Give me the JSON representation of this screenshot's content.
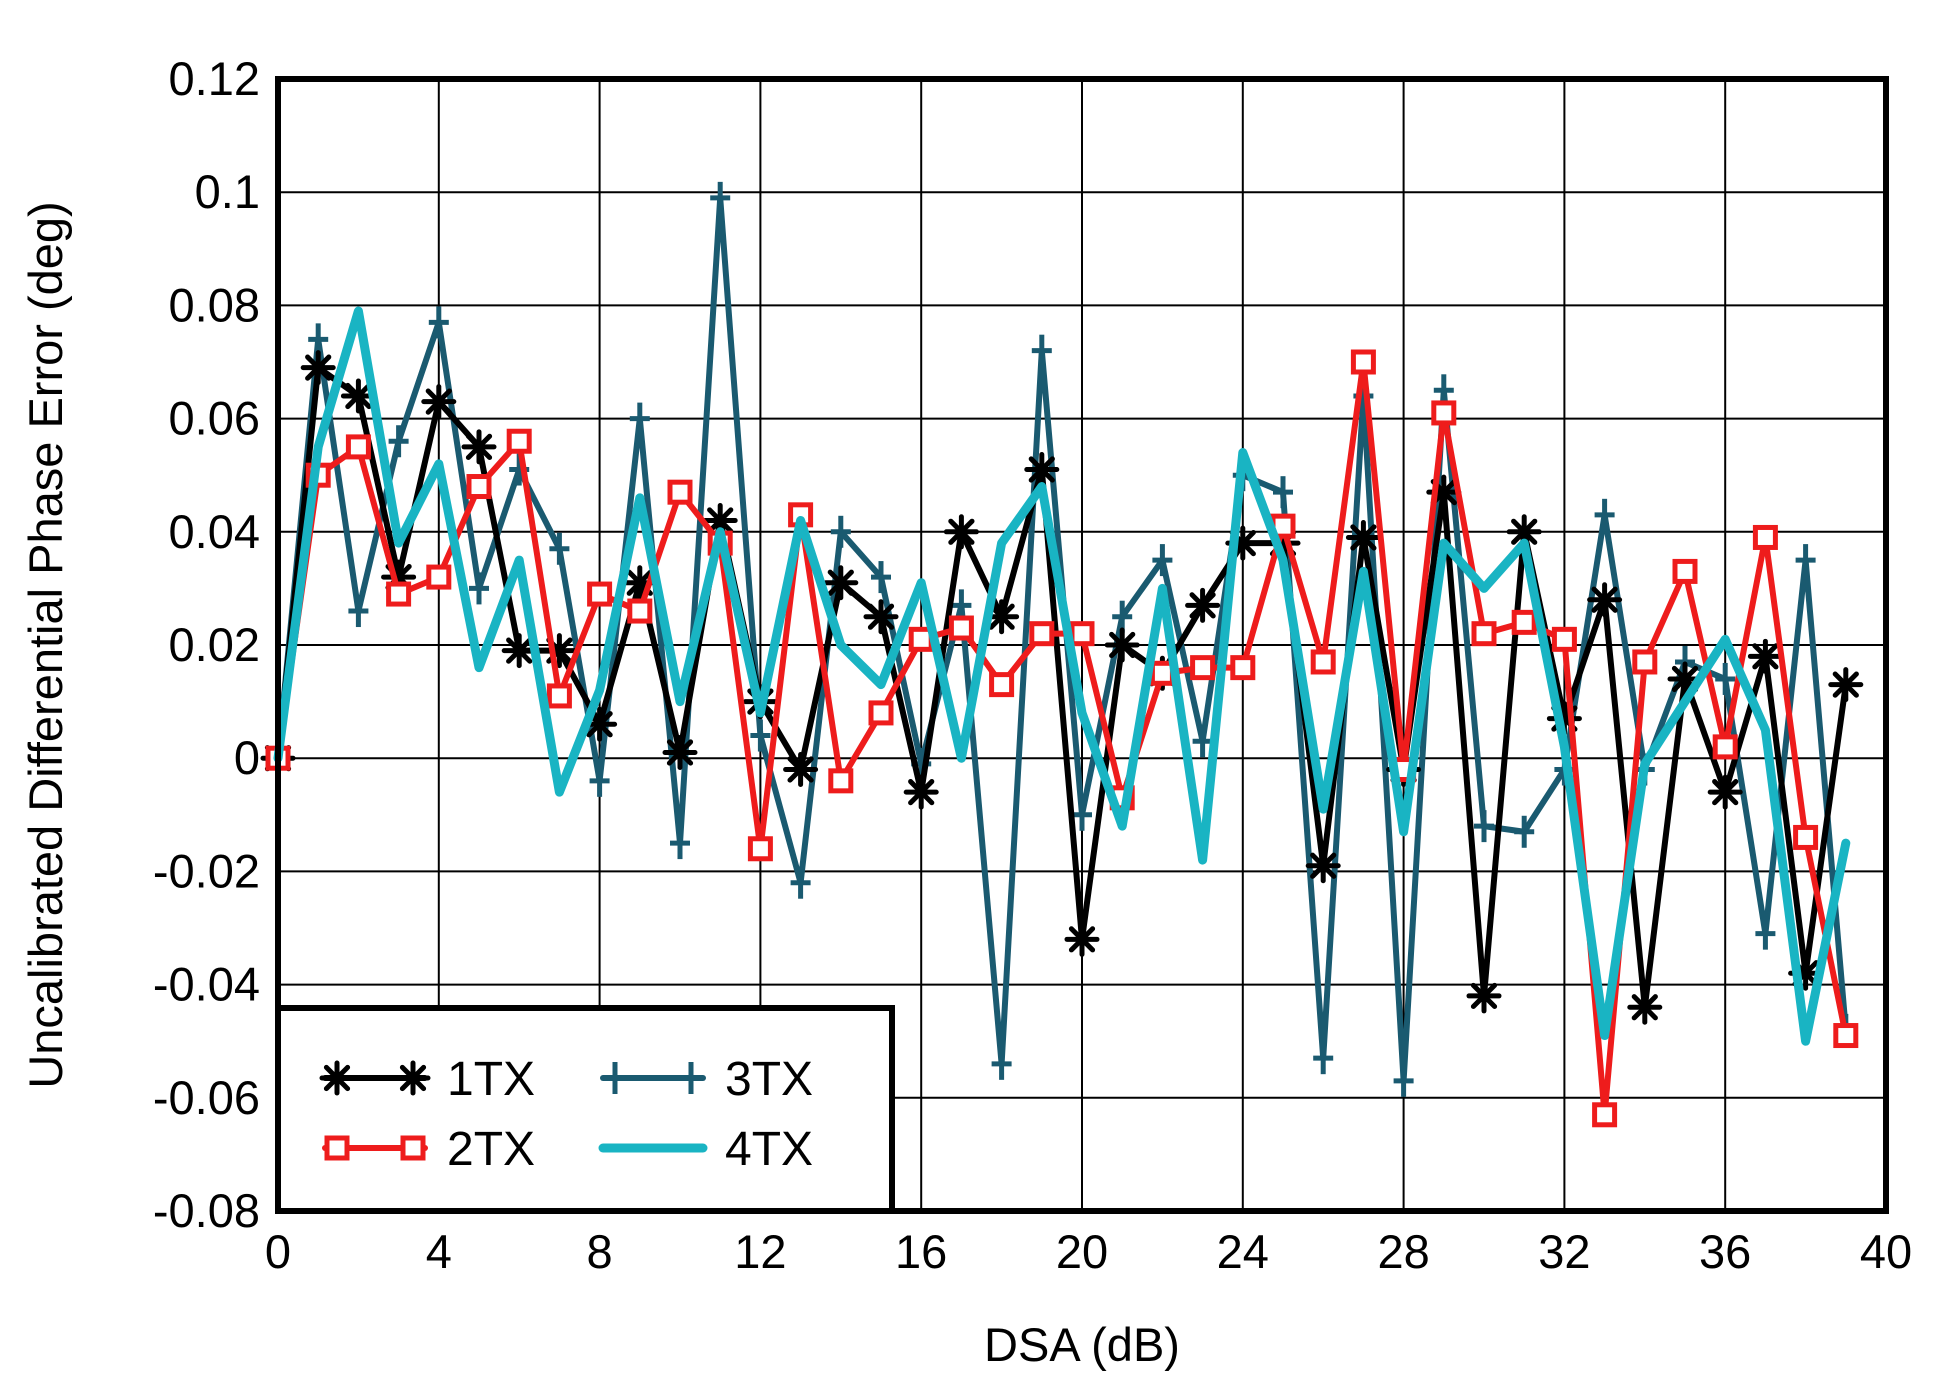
{
  "chart_data": {
    "type": "line",
    "title": "",
    "xlabel": "DSA (dB)",
    "ylabel": "Uncalibrated Differential Phase Error (deg)",
    "xlim": [
      0,
      40
    ],
    "ylim": [
      -0.08,
      0.12
    ],
    "grid": true,
    "x_ticks": [
      0,
      4,
      8,
      12,
      16,
      20,
      24,
      28,
      32,
      36,
      40
    ],
    "x_tick_labels": [
      "0",
      "4",
      "8",
      "12",
      "16",
      "20",
      "24",
      "28",
      "32",
      "36",
      "40"
    ],
    "x_grid_step": 4,
    "y_ticks": [
      0.12,
      0.1,
      0.08,
      0.06,
      0.04,
      0.02,
      0,
      -0.02,
      -0.04,
      -0.06,
      -0.08
    ],
    "y_tick_labels": [
      "0.12",
      "0.1",
      "0.08",
      "0.06",
      "0.04",
      "0.02",
      "0",
      "-0.02",
      "-0.04",
      "-0.06",
      "-0.08"
    ],
    "legend_position": "bottom-left",
    "x": [
      0,
      1,
      2,
      3,
      4,
      5,
      6,
      7,
      8,
      9,
      10,
      11,
      12,
      13,
      14,
      15,
      16,
      17,
      18,
      19,
      20,
      21,
      22,
      23,
      24,
      25,
      26,
      27,
      28,
      29,
      30,
      31,
      32,
      33,
      34,
      35,
      36,
      37,
      38,
      39
    ],
    "series": [
      {
        "name": "1TX",
        "color": "#000000",
        "marker": "asterisk",
        "values": [
          0,
          0.069,
          0.064,
          0.032,
          0.063,
          0.055,
          0.019,
          0.019,
          0.006,
          0.031,
          0.001,
          0.042,
          0.01,
          -0.002,
          0.031,
          0.025,
          -0.006,
          0.04,
          0.025,
          0.051,
          -0.032,
          0.02,
          0.015,
          0.027,
          0.038,
          0.038,
          -0.019,
          0.039,
          -0.002,
          0.047,
          -0.042,
          0.04,
          0.007,
          0.028,
          -0.044,
          0.014,
          -0.006,
          0.018,
          -0.038,
          0.013
        ]
      },
      {
        "name": "2TX",
        "color": "#ee1c1c",
        "marker": "square",
        "values": [
          0,
          0.05,
          0.055,
          0.029,
          0.032,
          0.048,
          0.056,
          0.011,
          0.029,
          0.026,
          0.047,
          0.038,
          -0.016,
          0.043,
          -0.004,
          0.008,
          0.021,
          0.023,
          0.013,
          0.022,
          0.022,
          -0.007,
          0.015,
          0.016,
          0.016,
          0.041,
          0.017,
          0.07,
          -0.002,
          0.061,
          0.022,
          0.024,
          0.021,
          -0.063,
          0.017,
          0.033,
          0.002,
          0.039,
          -0.014,
          -0.049
        ]
      },
      {
        "name": "3TX",
        "color": "#1a5a70",
        "marker": "plus",
        "values": [
          0,
          0.074,
          0.026,
          0.056,
          0.077,
          0.03,
          0.051,
          0.037,
          -0.004,
          0.06,
          -0.015,
          0.099,
          0.004,
          -0.022,
          0.04,
          0.032,
          -0.001,
          0.027,
          -0.054,
          0.072,
          -0.01,
          0.025,
          0.035,
          0.003,
          0.05,
          0.047,
          -0.053,
          0.064,
          -0.057,
          0.065,
          -0.012,
          -0.013,
          -0.002,
          0.043,
          -0.002,
          0.017,
          0.014,
          -0.031,
          0.035,
          -0.048
        ]
      },
      {
        "name": "4TX",
        "color": "#19b4c3",
        "marker": "none",
        "values": [
          0,
          0.055,
          0.079,
          0.038,
          0.052,
          0.016,
          0.035,
          -0.006,
          0.012,
          0.046,
          0.01,
          0.04,
          0.008,
          0.042,
          0.02,
          0.013,
          0.031,
          0.0,
          0.038,
          0.048,
          0.008,
          -0.012,
          0.03,
          -0.018,
          0.054,
          0.035,
          -0.009,
          0.033,
          -0.013,
          0.038,
          0.03,
          0.038,
          0.002,
          -0.049,
          -0.001,
          0.01,
          0.021,
          0.005,
          -0.05,
          -0.015
        ]
      }
    ]
  }
}
